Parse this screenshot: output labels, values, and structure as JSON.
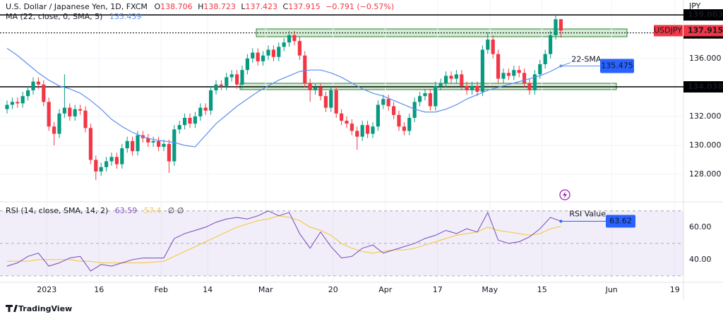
{
  "chart_data": [
    {
      "type": "candlestick",
      "title": "U.S. Dollar / Japanese Yen, 1D, FXCM",
      "ohlc_labels": [
        "O",
        "H",
        "L",
        "C"
      ],
      "change": "−0.791 (−0.57%)",
      "symbol": "USDJPY",
      "currency": "JPY",
      "ma_label": "MA (22, close, 0, SMA, 5)",
      "ma_value": 135.439,
      "up_color": "#089981",
      "down_color": "#f23645",
      "open": [
        132.5,
        132.8,
        133.0,
        132.9,
        133.4,
        133.8,
        134.4,
        134.2,
        133.0,
        131.3,
        130.8,
        132.2,
        132.6,
        132.0,
        132.5,
        132.4,
        131.2,
        129.0,
        128.2,
        128.5,
        128.9,
        129.2,
        128.7,
        129.8,
        130.3,
        129.6,
        130.7,
        130.5,
        130.2,
        130.3,
        129.9,
        130.1,
        128.9,
        131.1,
        131.4,
        131.9,
        131.5,
        132.0,
        132.6,
        132.4,
        133.8,
        134.2,
        134.1,
        134.7,
        134.9,
        134.2,
        135.2,
        136.0,
        136.4,
        135.8,
        136.2,
        136.6,
        136.1,
        136.8,
        137.1,
        137.6,
        137.2,
        136.2,
        134.3,
        133.8,
        134.0,
        133.4,
        132.6,
        133.8,
        132.2,
        131.7,
        131.5,
        131.0,
        130.6,
        131.4,
        130.8,
        131.3,
        132.8,
        133.2,
        132.7,
        132.1,
        131.3,
        131.0,
        131.9,
        133.0,
        133.4,
        133.6,
        132.7,
        134.1,
        134.3,
        134.8,
        134.6,
        134.9,
        134.1,
        133.8,
        134.1,
        133.7,
        136.6,
        137.3,
        136.3,
        134.6,
        135.0,
        134.8,
        135.2,
        135.0,
        134.3,
        133.8,
        134.9,
        135.6,
        136.3,
        137.6,
        138.706
      ],
      "high": [
        133.1,
        133.3,
        133.3,
        133.7,
        134.1,
        134.7,
        134.7,
        134.5,
        133.3,
        131.6,
        132.5,
        134.9,
        132.9,
        132.8,
        132.8,
        132.7,
        131.5,
        129.3,
        128.8,
        129.2,
        129.5,
        129.5,
        130.1,
        130.6,
        130.6,
        131.0,
        131.0,
        130.8,
        130.6,
        130.6,
        130.4,
        130.4,
        131.4,
        131.7,
        132.2,
        132.2,
        132.3,
        132.9,
        132.9,
        134.1,
        134.5,
        134.5,
        135.0,
        135.2,
        135.2,
        135.5,
        136.3,
        136.7,
        136.7,
        136.5,
        136.9,
        136.9,
        137.1,
        137.4,
        137.9,
        137.9,
        137.5,
        136.5,
        134.6,
        134.3,
        134.3,
        133.7,
        134.1,
        134.1,
        132.5,
        132.0,
        131.8,
        131.3,
        131.7,
        131.7,
        131.6,
        133.1,
        133.5,
        133.5,
        133.0,
        132.4,
        131.6,
        132.2,
        133.3,
        133.7,
        133.9,
        133.9,
        134.4,
        134.6,
        135.1,
        135.1,
        135.2,
        135.2,
        134.4,
        134.4,
        134.4,
        136.9,
        137.8,
        137.6,
        136.6,
        135.3,
        135.3,
        135.5,
        135.5,
        135.3,
        134.6,
        135.2,
        135.9,
        136.6,
        137.9,
        139.0,
        138.723
      ],
      "low": [
        132.2,
        132.5,
        132.6,
        132.6,
        133.1,
        133.5,
        133.9,
        132.7,
        131.0,
        130.0,
        130.5,
        131.9,
        131.7,
        131.7,
        132.1,
        130.9,
        128.7,
        127.6,
        127.9,
        128.2,
        128.6,
        128.4,
        128.4,
        129.5,
        129.3,
        129.3,
        130.2,
        129.9,
        129.9,
        129.6,
        129.6,
        128.1,
        128.6,
        130.8,
        131.1,
        131.2,
        131.2,
        131.7,
        132.1,
        132.1,
        133.5,
        133.8,
        133.8,
        134.4,
        133.9,
        133.9,
        134.9,
        135.7,
        135.5,
        135.5,
        135.9,
        135.8,
        135.8,
        136.5,
        136.8,
        136.9,
        135.9,
        134.0,
        133.0,
        133.5,
        133.1,
        132.3,
        132.3,
        131.9,
        131.4,
        131.2,
        130.7,
        129.7,
        130.3,
        130.5,
        130.5,
        131.0,
        132.5,
        132.4,
        131.8,
        131.0,
        130.7,
        130.7,
        131.6,
        132.7,
        133.1,
        132.4,
        132.4,
        133.8,
        134.0,
        134.3,
        134.3,
        133.8,
        133.5,
        133.5,
        133.4,
        133.4,
        136.3,
        136.0,
        134.3,
        134.3,
        134.5,
        134.5,
        134.7,
        134.0,
        133.5,
        133.5,
        134.6,
        135.3,
        136.0,
        137.3,
        137.423
      ],
      "close": [
        132.8,
        133.0,
        132.9,
        133.4,
        133.8,
        134.4,
        134.2,
        133.0,
        131.3,
        130.8,
        132.2,
        132.6,
        132.0,
        132.5,
        132.4,
        131.2,
        129.0,
        128.2,
        128.5,
        128.9,
        129.2,
        128.7,
        129.8,
        130.3,
        129.6,
        130.7,
        130.5,
        130.2,
        130.3,
        129.9,
        130.1,
        128.9,
        131.1,
        131.4,
        131.9,
        131.5,
        132.0,
        132.6,
        132.4,
        133.8,
        134.2,
        134.1,
        134.7,
        134.9,
        134.2,
        135.2,
        136.0,
        136.4,
        135.8,
        136.2,
        136.6,
        136.1,
        136.8,
        137.1,
        137.6,
        137.2,
        136.2,
        134.3,
        133.8,
        134.0,
        133.4,
        132.6,
        133.8,
        132.2,
        131.7,
        131.5,
        131.0,
        130.6,
        131.4,
        130.8,
        131.3,
        132.8,
        133.2,
        132.7,
        132.1,
        131.3,
        131.0,
        131.9,
        133.0,
        133.4,
        133.6,
        132.7,
        134.1,
        134.3,
        134.8,
        134.6,
        134.9,
        134.1,
        133.8,
        134.1,
        133.7,
        136.6,
        137.3,
        136.3,
        134.6,
        135.0,
        134.8,
        135.2,
        135.0,
        134.3,
        133.8,
        134.9,
        135.6,
        136.3,
        137.6,
        138.7,
        137.915
      ],
      "sma": {
        "name": "22-SMA",
        "color": "#5b8ff0",
        "x": [
          0,
          2,
          4,
          6,
          8,
          10,
          12,
          14,
          16,
          18,
          20,
          22,
          24,
          26,
          28,
          30,
          32,
          34,
          36,
          38,
          40,
          42,
          44,
          46,
          48,
          50,
          52,
          54,
          56,
          58,
          60,
          62,
          64,
          66,
          68,
          70,
          72,
          74,
          76,
          78,
          80,
          82,
          84,
          86,
          88,
          90,
          92,
          94,
          96,
          98,
          100,
          102,
          104,
          106
        ],
        "values": [
          136.7,
          136.2,
          135.6,
          135.0,
          134.5,
          134.1,
          133.9,
          133.6,
          133.1,
          132.5,
          131.8,
          131.3,
          130.9,
          130.6,
          130.4,
          130.3,
          130.2,
          130.0,
          129.9,
          130.7,
          131.5,
          132.1,
          132.7,
          133.2,
          133.7,
          134.1,
          134.5,
          134.8,
          135.1,
          135.2,
          135.2,
          135.0,
          134.7,
          134.3,
          133.9,
          133.6,
          133.4,
          133.1,
          132.8,
          132.5,
          132.3,
          132.3,
          132.5,
          132.8,
          133.2,
          133.5,
          133.8,
          134.0,
          134.2,
          134.4,
          134.6,
          134.8,
          135.1,
          135.475
        ]
      },
      "levels": [
        {
          "value": 139.003,
          "style": "solid"
        },
        {
          "value": 137.757,
          "style": "dashed"
        },
        {
          "value": 134.038,
          "style": "solid"
        }
      ],
      "xlim": [
        -1.35,
        129.46
      ],
      "ylim": [
        126.25,
        140.03
      ],
      "yticks": [
        {
          "value": 128,
          "label": "128.000"
        },
        {
          "value": 130,
          "label": "130.000"
        },
        {
          "value": 132,
          "label": "132.000"
        },
        {
          "value": 136,
          "label": "136.000"
        }
      ],
      "xticks": [
        {
          "value": 7.6,
          "label": "2023"
        },
        {
          "value": 17.6,
          "label": "16"
        },
        {
          "value": 29.5,
          "label": "Feb"
        },
        {
          "value": 38.4,
          "label": "14"
        },
        {
          "value": 49.5,
          "label": "Mar"
        },
        {
          "value": 62.4,
          "label": "20"
        },
        {
          "value": 72.4,
          "label": "Apr"
        },
        {
          "value": 82.4,
          "label": "17"
        },
        {
          "value": 92.4,
          "label": "May"
        },
        {
          "value": 102.4,
          "label": "15"
        },
        {
          "value": 115.7,
          "label": "Jun"
        },
        {
          "value": 127.8,
          "label": "19"
        }
      ],
      "grid": true,
      "footer": "TradingView"
    },
    {
      "type": "line",
      "title": "RSI (14, close, SMA, 14, 2)",
      "header_values": [
        63.59,
        57.4
      ],
      "status": "∅ ∅",
      "x": [
        0,
        2,
        4,
        6,
        8,
        10,
        12,
        14,
        16,
        18,
        20,
        22,
        24,
        26,
        28,
        30,
        32,
        34,
        36,
        38,
        40,
        42,
        44,
        46,
        48,
        50,
        52,
        54,
        56,
        58,
        60,
        62,
        64,
        66,
        68,
        70,
        72,
        74,
        76,
        78,
        80,
        82,
        84,
        86,
        88,
        90,
        92,
        94,
        96,
        98,
        100,
        102,
        104,
        106
      ],
      "series": [
        {
          "name": "RSI Value",
          "color": "#7e57c2",
          "values": [
            36,
            38,
            42,
            44,
            36,
            38,
            41,
            42,
            33,
            37,
            36,
            38,
            40,
            41,
            41,
            41,
            53,
            56,
            58,
            60,
            63,
            65,
            66,
            65,
            67,
            70,
            67,
            69,
            56,
            47,
            57,
            48,
            41,
            42,
            47,
            49,
            44,
            46,
            48,
            50,
            53,
            55,
            58,
            56,
            59,
            57,
            69,
            52,
            50,
            51,
            54,
            59,
            66,
            63.62
          ]
        },
        {
          "color": "#f5c842",
          "values": [
            39,
            39,
            39,
            40,
            40,
            40,
            40,
            39,
            39,
            38,
            38,
            38,
            38,
            38,
            38.5,
            39,
            42,
            45,
            48,
            51,
            54,
            57,
            60,
            62,
            64,
            65,
            67,
            66,
            64,
            60,
            58,
            55,
            50,
            47,
            45,
            44,
            45,
            46,
            46,
            47,
            49,
            51,
            53,
            55,
            56,
            57,
            60,
            58,
            57,
            56,
            55,
            56,
            59,
            60.5
          ]
        }
      ],
      "levels": [
        30,
        50,
        70
      ],
      "ylim": [
        26.9,
        74.7
      ],
      "yticks": [
        {
          "value": 40,
          "label": "40.00"
        },
        {
          "value": 60,
          "label": "60.00"
        }
      ]
    }
  ]
}
